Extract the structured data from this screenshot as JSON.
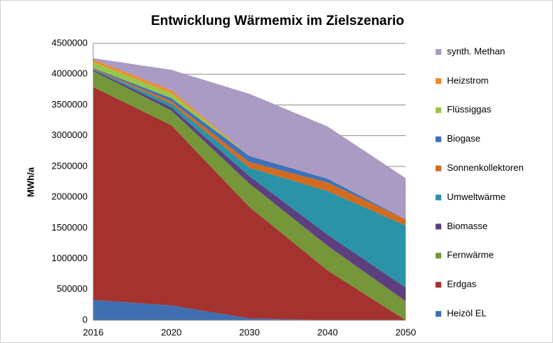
{
  "chart_data": {
    "type": "stacked_area",
    "title": "Entwicklung Wärmemix im Zielszenario",
    "y_label": "MWh/a",
    "categories": [
      "2016",
      "2020",
      "2030",
      "2040",
      "2050"
    ],
    "ylim": [
      0,
      4500000
    ],
    "yticks": [
      0,
      500000,
      1000000,
      1500000,
      2000000,
      2500000,
      3000000,
      3500000,
      4000000,
      4500000
    ],
    "grid": true,
    "legend": "right",
    "series": [
      {
        "name": "Heizöl EL",
        "color": "#3f6fb0",
        "values": [
          330000,
          240000,
          30000,
          0,
          0
        ]
      },
      {
        "name": "Erdgas",
        "color": "#a4322e",
        "values": [
          3460000,
          2930000,
          1810000,
          810000,
          0
        ]
      },
      {
        "name": "Fernwärme",
        "color": "#76963a",
        "values": [
          260000,
          240000,
          380000,
          400000,
          310000
        ]
      },
      {
        "name": "Biomasse",
        "color": "#5d3f7e",
        "values": [
          20000,
          50000,
          120000,
          180000,
          220000
        ]
      },
      {
        "name": "Umweltwärme",
        "color": "#2b93a8",
        "values": [
          10000,
          60000,
          140000,
          710000,
          1010000
        ]
      },
      {
        "name": "Sonnenkollektoren",
        "color": "#d26b1f",
        "values": [
          10000,
          40000,
          90000,
          140000,
          100000
        ]
      },
      {
        "name": "Biogase",
        "color": "#3d72b9",
        "values": [
          10000,
          50000,
          100000,
          60000,
          0
        ]
      },
      {
        "name": "Flüssiggas",
        "color": "#9bc44a",
        "values": [
          100000,
          80000,
          0,
          0,
          0
        ]
      },
      {
        "name": "Heizstrom",
        "color": "#f08a2c",
        "values": [
          40000,
          50000,
          0,
          0,
          0
        ]
      },
      {
        "name": "synth. Methan",
        "color": "#a99bc3",
        "values": [
          20000,
          330000,
          1010000,
          850000,
          670000
        ]
      }
    ]
  }
}
